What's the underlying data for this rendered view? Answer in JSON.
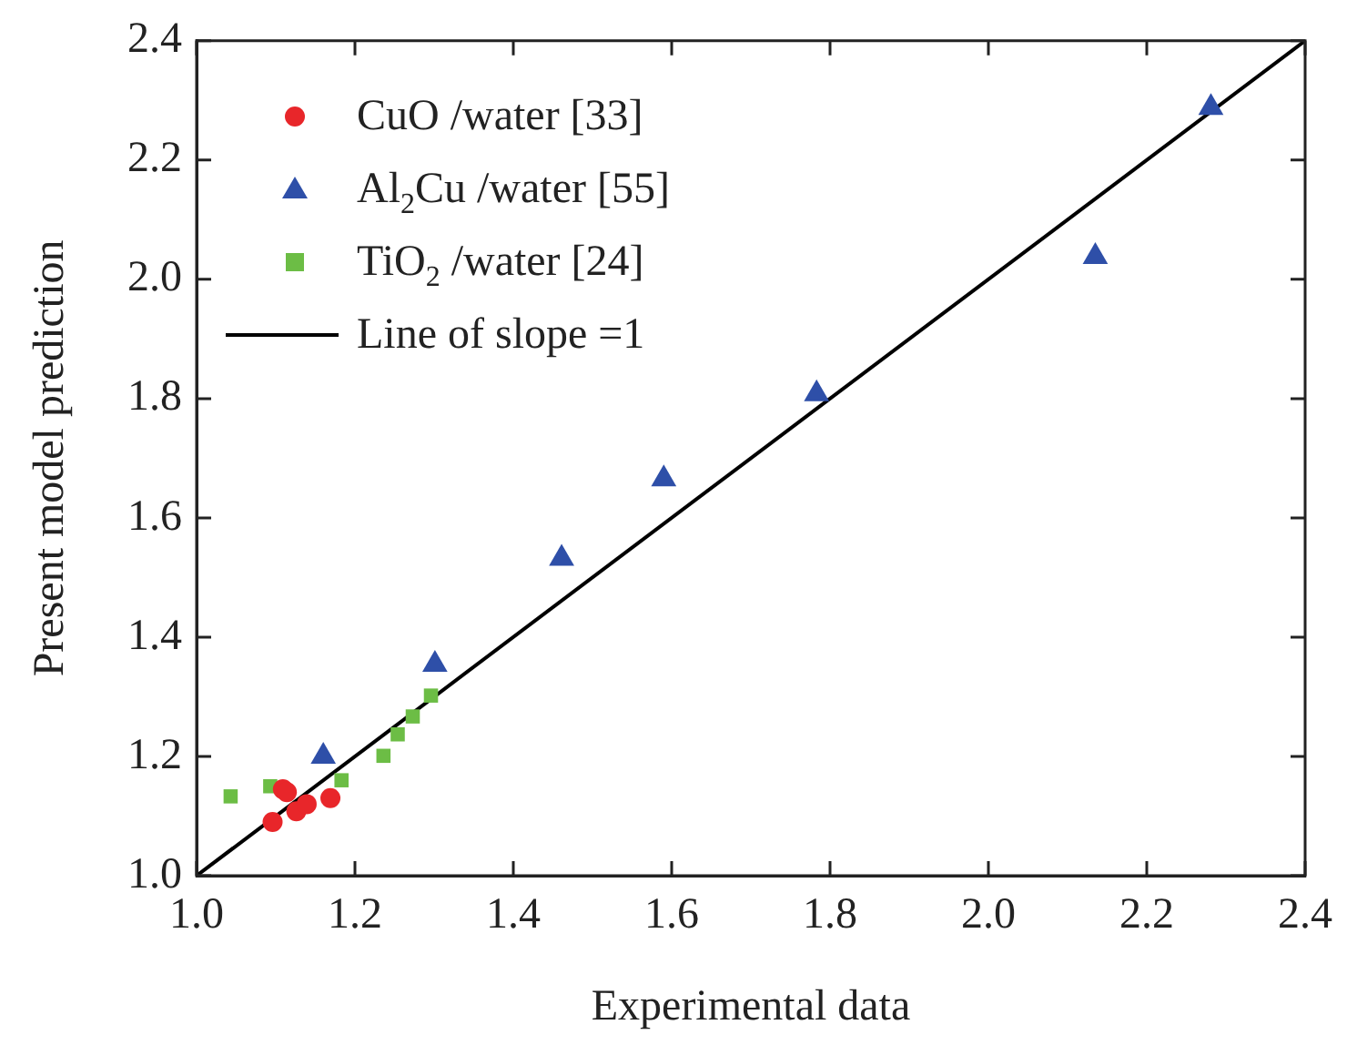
{
  "chart_data": {
    "type": "scatter",
    "xlabel": "Experimental data",
    "ylabel": "Present model prediction",
    "xlim": [
      1.0,
      2.4
    ],
    "ylim": [
      1.0,
      2.4
    ],
    "xticks": [
      {
        "value": 1,
        "label": "1.0"
      },
      {
        "value": 1.2,
        "label": "1.2"
      },
      {
        "value": 1.4,
        "label": "1.4"
      },
      {
        "value": 1.6,
        "label": "1.6"
      },
      {
        "value": 1.8,
        "label": "1.8"
      },
      {
        "value": 2,
        "label": "2.0"
      },
      {
        "value": 2.2,
        "label": "2.2"
      },
      {
        "value": 2.4,
        "label": "2.4"
      }
    ],
    "yticks": [
      {
        "value": 1,
        "label": "1.0"
      },
      {
        "value": 1.2,
        "label": "1.2"
      },
      {
        "value": 1.4,
        "label": "1.4"
      },
      {
        "value": 1.6,
        "label": "1.6"
      },
      {
        "value": 1.8,
        "label": "1.8"
      },
      {
        "value": 2,
        "label": "2.0"
      },
      {
        "value": 2.2,
        "label": "2.2"
      },
      {
        "value": 2.4,
        "label": "2.4"
      }
    ],
    "grid": false,
    "legend": "top left",
    "series": [
      {
        "name": "CuO /water [33]",
        "marker": "circle",
        "color": "#e8262a",
        "x": [
          1.096,
          1.109,
          1.114,
          1.126,
          1.139,
          1.169
        ],
        "values": [
          1.09,
          1.145,
          1.14,
          1.108,
          1.12,
          1.13
        ]
      },
      {
        "name": "Al$_{2}$Cu /water [55]",
        "marker": "triangle",
        "color": "#2e4fa8",
        "x": [
          1.16,
          1.301,
          1.461,
          1.59,
          1.783,
          2.135,
          2.281
        ],
        "values": [
          1.2,
          1.354,
          1.532,
          1.665,
          1.808,
          2.038,
          2.288
        ]
      },
      {
        "name": "TiO$_{2}$ /water [24]",
        "marker": "square",
        "color": "#6cbd45",
        "x": [
          1.043,
          1.093,
          1.183,
          1.236,
          1.254,
          1.273,
          1.296
        ],
        "values": [
          1.133,
          1.15,
          1.16,
          1.201,
          1.237,
          1.267,
          1.302
        ]
      },
      {
        "name": "Line of slope =1",
        "type": "line",
        "marker": "none",
        "line_style": "solid",
        "color": "#000000",
        "x": [
          1.0,
          2.4
        ],
        "values": [
          1.0,
          2.4
        ]
      }
    ]
  }
}
